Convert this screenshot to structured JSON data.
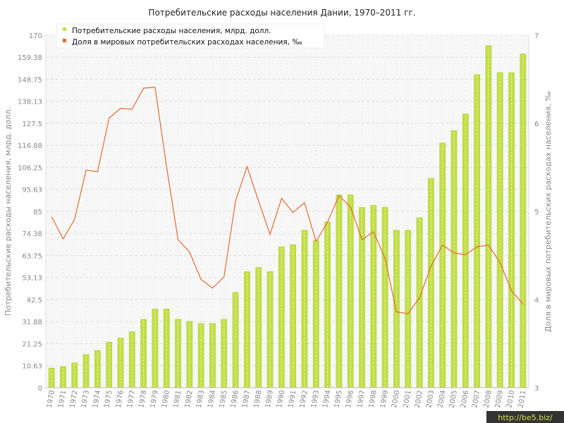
{
  "chart_data": {
    "type": "bar",
    "title": "Потребительские расходы населения Дании, 1970–2011 гг.",
    "ylabel": "Потребительские расходы населения, млрд. долл.",
    "y2label": "Доля в мировых потребительских расходах населения, ‰",
    "ylim": [
      0,
      170
    ],
    "y2lim": [
      3,
      7
    ],
    "yticks": [
      "0",
      "10.63",
      "21.25",
      "31.88",
      "42.5",
      "53.13",
      "63.75",
      "74.38",
      "85",
      "95.63",
      "106.25",
      "116.88",
      "127.5",
      "138.13",
      "148.75",
      "159.38",
      "170"
    ],
    "y2ticks": [
      "3",
      "4",
      "5",
      "6",
      "7"
    ],
    "grid": true,
    "legend_position": "top-left",
    "categories": [
      "1970",
      "1971",
      "1972",
      "1973",
      "1974",
      "1975",
      "1976",
      "1977",
      "1978",
      "1979",
      "1980",
      "1981",
      "1982",
      "1983",
      "1984",
      "1985",
      "1986",
      "1987",
      "1988",
      "1989",
      "1990",
      "1991",
      "1992",
      "1993",
      "1994",
      "1995",
      "1996",
      "1997",
      "1998",
      "1999",
      "2000",
      "2001",
      "2002",
      "2003",
      "2004",
      "2005",
      "2006",
      "2007",
      "2008",
      "2009",
      "2010",
      "2011"
    ],
    "series": [
      {
        "name": "Потребительские расходы населения, млрд. долл.",
        "kind": "bar",
        "axis": "left",
        "color": "#c3de48",
        "values": [
          9.5,
          10.2,
          12,
          16,
          18,
          22,
          24,
          27,
          33,
          38,
          38,
          33,
          32,
          31,
          31,
          33,
          46,
          56,
          58,
          56,
          68,
          69,
          76,
          71,
          80,
          93,
          93,
          87,
          88,
          87,
          76,
          76,
          82,
          101,
          118,
          124,
          132,
          151,
          165,
          152,
          152,
          161
        ]
      },
      {
        "name": "Доля в мировых потребительских расходах населения, ‰",
        "kind": "line",
        "axis": "right",
        "color": "#e06a32",
        "values": [
          4.94,
          4.69,
          4.91,
          5.47,
          5.45,
          6.06,
          6.17,
          6.16,
          6.4,
          6.41,
          5.51,
          4.68,
          4.54,
          4.23,
          4.13,
          4.26,
          5.12,
          5.51,
          5.12,
          4.74,
          5.15,
          4.99,
          5.1,
          4.66,
          4.88,
          5.18,
          5.05,
          4.68,
          4.77,
          4.47,
          3.86,
          3.84,
          4.02,
          4.38,
          4.62,
          4.53,
          4.51,
          4.6,
          4.62,
          4.42,
          4.1,
          3.95
        ]
      }
    ]
  },
  "watermark": "http://be5.biz/"
}
